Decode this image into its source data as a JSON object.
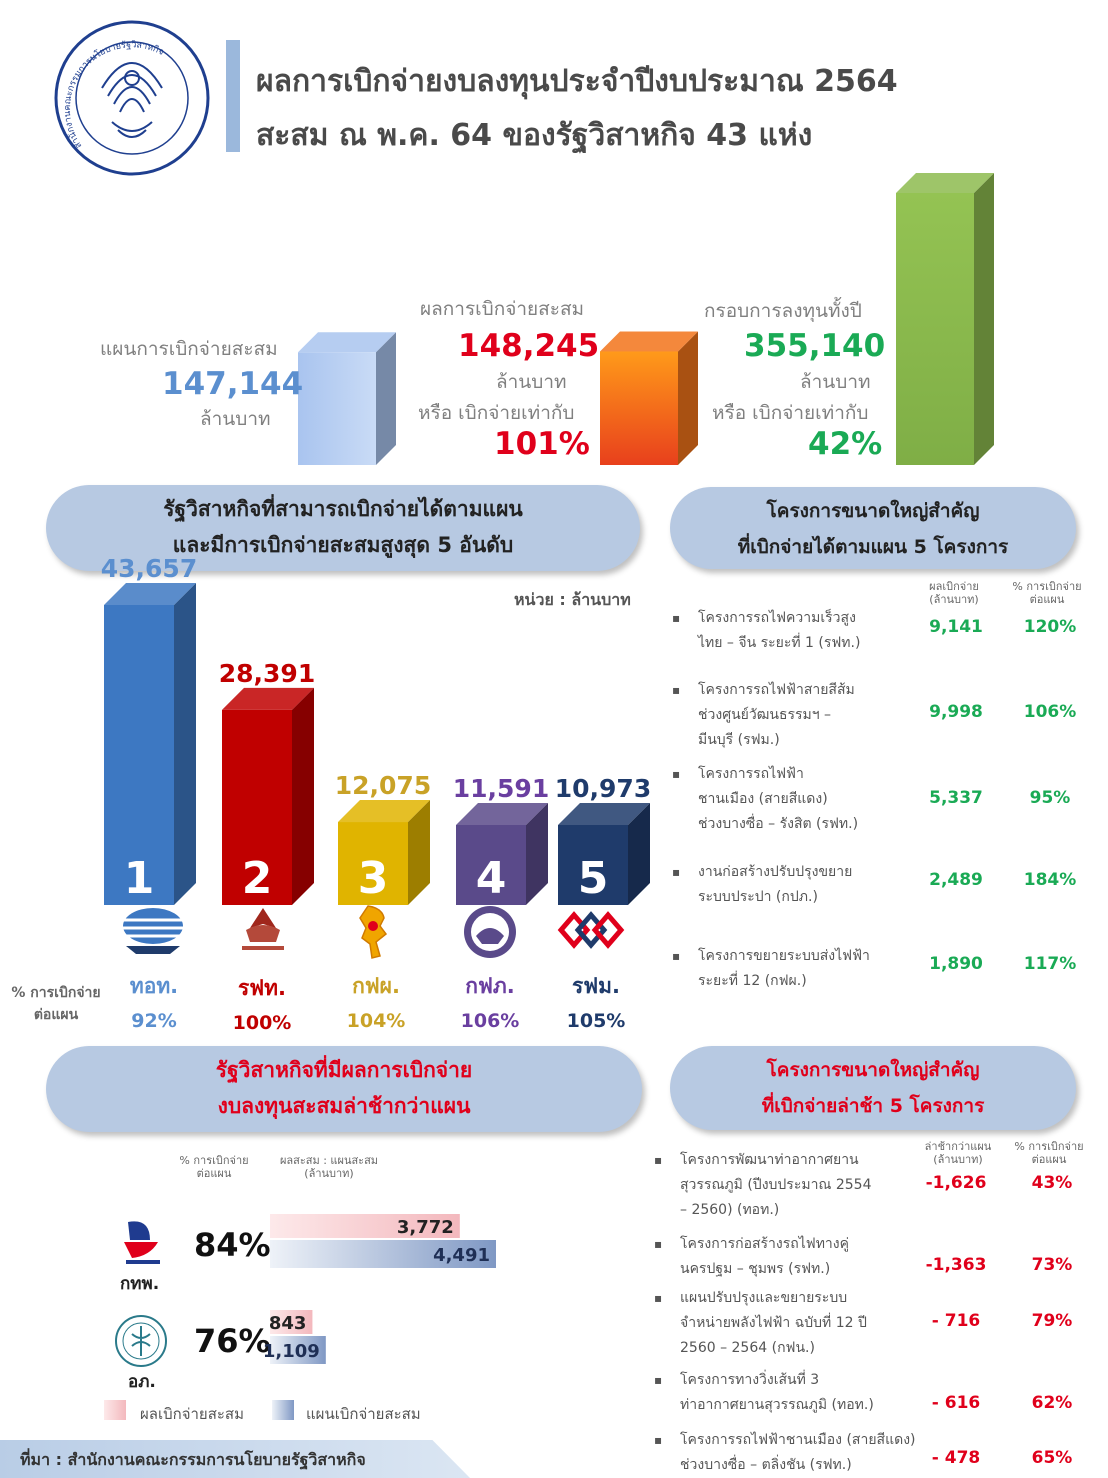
{
  "header": {
    "line1": "ผลการเบิกจ่ายงบลงทุนประจำปีงบประมาณ 2564",
    "line2": "สะสม ณ พ.ค. 64 ของรัฐวิสาหกิจ 43 แห่ง",
    "logo_text": "สำนักงานคณะกรรมการนโยบายรัฐวิสาหกิจ"
  },
  "summary": {
    "plan": {
      "label": "แผนการเบิกจ่ายสะสม",
      "value": "147,144",
      "unit": "ล้านบาท"
    },
    "actual": {
      "label": "ผลการเบิกจ่ายสะสม",
      "value": "148,245",
      "unit": "ล้านบาท",
      "or_label": "หรือ เบิกจ่ายเท่ากับ",
      "pct": "101%"
    },
    "total": {
      "label": "กรอบการลงทุนทั้งปี",
      "value": "355,140",
      "unit": "ล้านบาท",
      "or_label": "หรือ เบิกจ่ายเท่ากับ",
      "pct": "42%"
    }
  },
  "top5": {
    "title_line1": "รัฐวิสาหกิจที่สามารถเบิกจ่ายได้ตามแผน",
    "title_line2": "และมีการเบิกจ่ายสะสมสูงสุด 5 อันดับ",
    "unit_label": "หน่วย : ล้านบาท",
    "pct_label_line1": "% การเบิกจ่าย",
    "pct_label_line2": "ต่อแผน"
  },
  "big_on_plan": {
    "title_line1": "โครงการขนาดใหญ่สำคัญ",
    "title_line2": "ที่เบิกจ่ายได้ตามแผน 5 โครงการ",
    "col1_line1": "ผลเบิกจ่าย",
    "col1_line2": "(ล้านบาท)",
    "col2_line1": "% การเบิกจ่าย",
    "col2_line2": "ต่อแผน",
    "items": [
      {
        "bullet": "▪",
        "lines": [
          "โครงการรถไฟความเร็วสูง",
          "ไทย – จีน ระยะที่ 1 (รฟท.)"
        ],
        "value": "9,141",
        "pct": "120%"
      },
      {
        "bullet": "▪",
        "lines": [
          "โครงการรถไฟฟ้าสายสีส้ม",
          "ช่วงศูนย์วัฒนธรรมฯ –",
          "มีนบุรี (รฟม.)"
        ],
        "value": "9,998",
        "pct": "106%"
      },
      {
        "bullet": "▪",
        "lines": [
          "โครงการรถไฟฟ้า",
          "ชานเมือง (สายสีแดง)",
          "ช่วงบางซื่อ – รังสิต (รฟท.)"
        ],
        "value": "5,337",
        "pct": "95%"
      },
      {
        "bullet": "▪",
        "lines": [
          "งานก่อสร้างปรับปรุงขยาย",
          "ระบบประปา (กปภ.)"
        ],
        "value": "2,489",
        "pct": "184%"
      },
      {
        "bullet": "▪",
        "lines": [
          "โครงการขยายระบบส่งไฟฟ้า",
          "ระยะที่ 12 (กฟผ.)"
        ],
        "value": "1,890",
        "pct": "117%"
      }
    ]
  },
  "delayed": {
    "title_line1": "รัฐวิสาหกิจที่มีผลการเบิกจ่าย",
    "title_line2": "งบลงทุนสะสมล่าช้ากว่าแผน",
    "col1_line1": "% การเบิกจ่าย",
    "col1_line2": "ต่อแผน",
    "col2_line1": "ผลสะสม : แผนสะสม",
    "col2_line2": "(ล้านบาท)",
    "legend_actual": "ผลเบิกจ่ายสะสม",
    "legend_plan": "แผนเบิกจ่ายสะสม"
  },
  "big_delayed": {
    "title_line1": "โครงการขนาดใหญ่สำคัญ",
    "title_line2": "ที่เบิกจ่ายล่าช้า 5 โครงการ",
    "col1_line1": "ล่าช้ากว่าแผน",
    "col1_line2": "(ล้านบาท)",
    "col2_line1": "% การเบิกจ่าย",
    "col2_line2": "ต่อแผน",
    "items": [
      {
        "bullet": "▪",
        "lines": [
          "โครงการพัฒนาท่าอากาศยาน",
          "สุวรรณภูมิ (ปีงบประมาณ 2554",
          "– 2560) (ทอท.)"
        ],
        "value": "-1,626",
        "pct": "43%"
      },
      {
        "bullet": "▪",
        "lines": [
          "โครงการก่อสร้างรถไฟทางคู่",
          "นครปฐม – ชุมพร (รฟท.)"
        ],
        "value": "-1,363",
        "pct": "73%"
      },
      {
        "bullet": "▪",
        "lines": [
          "แผนปรับปรุงและขยายระบบ",
          "จำหน่ายพลังไฟฟ้า ฉบับที่ 12 ปี",
          "2560 – 2564 (กฟน.)"
        ],
        "value": "- 716",
        "pct": "79%"
      },
      {
        "bullet": "▪",
        "lines": [
          "โครงการทางวิ่งเส้นที่ 3",
          "ท่าอากาศยานสุวรรณภูมิ (ทอท.)"
        ],
        "value": "- 616",
        "pct": "62%"
      },
      {
        "bullet": "▪",
        "lines": [
          "โครงการรถไฟฟ้าชานเมือง (สายสีแดง)",
          "ช่วงบางซื่อ – ตลิ่งชัน (รฟท.)"
        ],
        "value": "- 478",
        "pct": "65%"
      }
    ]
  },
  "footer": {
    "source": "ที่มา : สำนักงานคณะกรรมการนโยบายรัฐวิสาหกิจ"
  },
  "colors": {
    "bar1": "#3d78c2",
    "bar2": "#c00000",
    "bar3": "#e0b400",
    "bar4": "#5a4a8a",
    "bar5": "#1f3b6b",
    "num1": "#5b8fcf",
    "num2": "#c00000",
    "num3": "#c9a227",
    "num4": "#6a3fa0",
    "num5": "#1f3b6b"
  },
  "chart_data": [
    {
      "type": "bar",
      "categories": [
        "แผนการเบิกจ่ายสะสม",
        "ผลการเบิกจ่ายสะสม",
        "กรอบการลงทุนทั้งปี"
      ],
      "values": [
        147144,
        148245,
        355140
      ]
    },
    {
      "type": "bar",
      "categories": [
        "ทอท.",
        "รฟท.",
        "กฟผ.",
        "กฟภ.",
        "รฟม."
      ],
      "ranks": [
        "1",
        "2",
        "3",
        "4",
        "5"
      ],
      "values": [
        43657,
        28391,
        12075,
        11591,
        10973
      ],
      "labels": [
        "43,657",
        "28,391",
        "12,075",
        "11,591",
        "10,973"
      ],
      "pct": [
        "92%",
        "100%",
        "104%",
        "106%",
        "105%"
      ]
    },
    {
      "type": "bar",
      "categories": [
        "กทพ.",
        "อภ."
      ],
      "pct": [
        "84%",
        "76%"
      ],
      "series": [
        {
          "name": "ผลเบิกจ่ายสะสม",
          "values": [
            3772,
            843
          ],
          "labels": [
            "3,772",
            "843"
          ]
        },
        {
          "name": "แผนเบิกจ่ายสะสม",
          "values": [
            4491,
            1109
          ],
          "labels": [
            "4,491",
            "1,109"
          ]
        }
      ]
    }
  ]
}
